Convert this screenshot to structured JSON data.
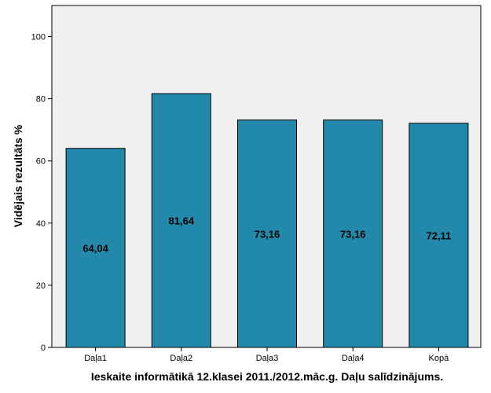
{
  "chart_data": {
    "type": "bar",
    "categories": [
      "Daļa1",
      "Daļa2",
      "Daļa3",
      "Daļa4",
      "Kopā"
    ],
    "values": [
      64.04,
      81.64,
      73.16,
      73.16,
      72.11
    ],
    "value_labels": [
      "64,04",
      "81,64",
      "73,16",
      "73,16",
      "72,11"
    ],
    "ylabel": "Vidējais rezultāts %",
    "xlabel": "Ieskaite informātikā 12.klasei 2011./2012.māc.g. Daļu salīdzinājums.",
    "ylim": [
      0,
      110
    ],
    "yticks": [
      0,
      20,
      40,
      60,
      80,
      100
    ],
    "bar_color": "#2389ab",
    "plot_background": "#f0f0f0",
    "grid": false,
    "legend": "none"
  }
}
